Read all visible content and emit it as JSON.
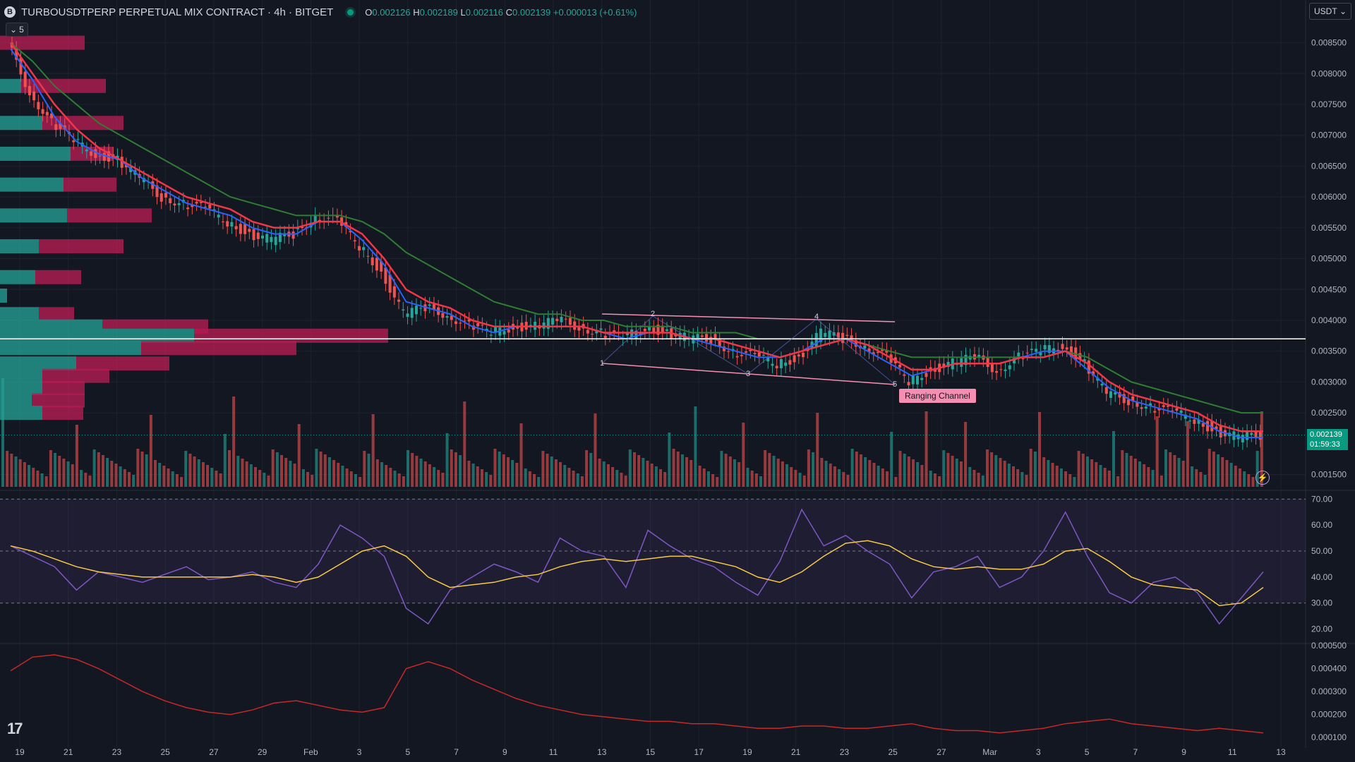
{
  "header": {
    "symbol": "TURBOUSDTPERP PERPETUAL MIX CONTRACT · 4h · BITGET",
    "logo_letter": "B",
    "ohlc": {
      "o_label": "O",
      "o": "0.002126",
      "h_label": "H",
      "h": "0.002189",
      "l_label": "L",
      "l": "0.002116",
      "c_label": "C",
      "c": "0.002139",
      "change": "+0.000013 (+0.61%)"
    },
    "collapse_count": "5"
  },
  "currency_selector": {
    "value": "USDT"
  },
  "last_price": {
    "price": "0.002139",
    "countdown": "01:59:33"
  },
  "annotation": {
    "label": "Ranging Channel",
    "points": [
      "2",
      "4",
      "1",
      "3",
      "5"
    ]
  },
  "colors": {
    "bg": "#131722",
    "up": "#26a69a",
    "down": "#ef5350",
    "ema_fast": "#2962ff",
    "ema_mid": "#f23645",
    "ema_slow": "#2e7d32",
    "rsi": "#7e57c2",
    "rsi_ma": "#f7c948",
    "third": "#c62828",
    "channel": "#f48fb1"
  },
  "icons": {
    "tradingview_logo": "tradingview-logo-icon",
    "lightning": "lightning-icon",
    "chevron": "chevron-down-icon"
  },
  "chart_data": [
    {
      "type": "line",
      "ylim": [
        0.0013,
        0.00885
      ],
      "price_ticks": [
        "0.008500",
        "0.008000",
        "0.007500",
        "0.007000",
        "0.006500",
        "0.006000",
        "0.005500",
        "0.005000",
        "0.004500",
        "0.004000",
        "0.003500",
        "0.003000",
        "0.002500",
        "0.001500"
      ],
      "price_tick_values": [
        0.0085,
        0.008,
        0.0075,
        0.007,
        0.0065,
        0.006,
        0.0055,
        0.005,
        0.0045,
        0.004,
        0.0035,
        0.003,
        0.0025,
        0.0015
      ],
      "x_ticks": [
        "19",
        "21",
        "23",
        "25",
        "27",
        "29",
        "Feb",
        "3",
        "5",
        "7",
        "9",
        "11",
        "13",
        "15",
        "17",
        "19",
        "21",
        "23",
        "25",
        "27",
        "Mar",
        "3",
        "5",
        "7",
        "9",
        "11",
        "13"
      ],
      "close": [
        0.0085,
        0.0077,
        0.0072,
        0.0069,
        0.0067,
        0.0066,
        0.0063,
        0.006,
        0.0059,
        0.0058,
        0.0056,
        0.0054,
        0.0053,
        0.0054,
        0.0057,
        0.0056,
        0.0052,
        0.0048,
        0.0041,
        0.0042,
        0.0041,
        0.0039,
        0.0038,
        0.0039,
        0.0039,
        0.004,
        0.0039,
        0.0038,
        0.0037,
        0.0039,
        0.0038,
        0.0037,
        0.0037,
        0.0035,
        0.0034,
        0.0033,
        0.0034,
        0.0038,
        0.0037,
        0.0036,
        0.0034,
        0.003,
        0.0032,
        0.0033,
        0.0034,
        0.0032,
        0.0034,
        0.0035,
        0.0036,
        0.0033,
        0.0028,
        0.0027,
        0.0026,
        0.0025,
        0.0024,
        0.0022,
        0.0021,
        0.00214
      ],
      "ema_fast": [
        0.0084,
        0.0079,
        0.0073,
        0.0069,
        0.0067,
        0.0066,
        0.0063,
        0.0061,
        0.0059,
        0.0058,
        0.0057,
        0.0055,
        0.0054,
        0.0054,
        0.0056,
        0.0056,
        0.0053,
        0.0049,
        0.0043,
        0.0042,
        0.0041,
        0.0039,
        0.0038,
        0.0039,
        0.0039,
        0.0039,
        0.0039,
        0.0038,
        0.0037,
        0.0038,
        0.0038,
        0.0037,
        0.0036,
        0.0035,
        0.0034,
        0.0034,
        0.0035,
        0.0037,
        0.0037,
        0.0035,
        0.0033,
        0.0031,
        0.0032,
        0.0033,
        0.0033,
        0.0033,
        0.0034,
        0.0035,
        0.0035,
        0.0032,
        0.0029,
        0.0027,
        0.0026,
        0.0025,
        0.0024,
        0.0022,
        0.0021,
        0.0021
      ],
      "ema_mid": [
        0.0085,
        0.008,
        0.0075,
        0.0071,
        0.0068,
        0.0066,
        0.0064,
        0.0062,
        0.006,
        0.0059,
        0.0058,
        0.0056,
        0.0055,
        0.0055,
        0.0056,
        0.0056,
        0.0054,
        0.005,
        0.0045,
        0.0043,
        0.0042,
        0.004,
        0.0039,
        0.0039,
        0.0039,
        0.0039,
        0.0039,
        0.0038,
        0.0038,
        0.0038,
        0.0038,
        0.0037,
        0.0037,
        0.0036,
        0.0035,
        0.0034,
        0.0035,
        0.0036,
        0.0037,
        0.0036,
        0.0034,
        0.0032,
        0.0032,
        0.0033,
        0.0033,
        0.0033,
        0.0034,
        0.0034,
        0.0035,
        0.0033,
        0.003,
        0.0028,
        0.0027,
        0.0026,
        0.0025,
        0.0023,
        0.0022,
        0.0022
      ],
      "ema_slow": [
        0.0085,
        0.0082,
        0.0078,
        0.0075,
        0.0072,
        0.007,
        0.0068,
        0.0066,
        0.0064,
        0.0062,
        0.006,
        0.0059,
        0.0058,
        0.0057,
        0.0057,
        0.0057,
        0.0056,
        0.0054,
        0.0051,
        0.0049,
        0.0047,
        0.0045,
        0.0043,
        0.0042,
        0.0041,
        0.0041,
        0.004,
        0.004,
        0.0039,
        0.0039,
        0.0039,
        0.0038,
        0.0038,
        0.0038,
        0.0037,
        0.0037,
        0.0037,
        0.0037,
        0.0037,
        0.0036,
        0.0035,
        0.0034,
        0.0034,
        0.0034,
        0.0034,
        0.0034,
        0.0034,
        0.0034,
        0.0035,
        0.0034,
        0.0032,
        0.003,
        0.0029,
        0.0028,
        0.0027,
        0.0026,
        0.0025,
        0.0025
      ],
      "horizontal_level": 0.0037
    },
    {
      "type": "line",
      "ylim": [
        15,
        72
      ],
      "ticks": [
        "70.00",
        "60.00",
        "50.00",
        "40.00",
        "30.00",
        "20.00"
      ],
      "tick_values": [
        70,
        60,
        50,
        40,
        30,
        20
      ],
      "band": [
        30,
        70
      ],
      "rsi": [
        52,
        48,
        44,
        35,
        42,
        40,
        38,
        41,
        44,
        39,
        40,
        42,
        38,
        36,
        45,
        60,
        55,
        48,
        28,
        22,
        35,
        40,
        45,
        42,
        38,
        55,
        50,
        48,
        36,
        58,
        52,
        47,
        44,
        38,
        33,
        46,
        66,
        52,
        56,
        50,
        45,
        32,
        42,
        44,
        48,
        36,
        40,
        50,
        65,
        48,
        34,
        30,
        38,
        40,
        34,
        22,
        32,
        42
      ],
      "rsi_ma": [
        52,
        50,
        47,
        44,
        42,
        41,
        40,
        40,
        40,
        40,
        40,
        41,
        40,
        38,
        40,
        45,
        50,
        52,
        48,
        40,
        36,
        37,
        38,
        40,
        41,
        44,
        46,
        47,
        46,
        47,
        48,
        48,
        46,
        44,
        40,
        38,
        42,
        48,
        53,
        54,
        52,
        47,
        44,
        43,
        44,
        43,
        43,
        45,
        50,
        51,
        46,
        40,
        37,
        36,
        35,
        29,
        30,
        36
      ]
    },
    {
      "type": "line",
      "ylim": [
        7e-05,
        0.0005
      ],
      "ticks": [
        "0.000500",
        "0.000400",
        "0.000300",
        "0.000200",
        "0.000100"
      ],
      "tick_values": [
        0.0005,
        0.0004,
        0.0003,
        0.0002,
        0.0001
      ],
      "values": [
        0.00039,
        0.00045,
        0.00046,
        0.00044,
        0.0004,
        0.00035,
        0.0003,
        0.00026,
        0.00023,
        0.00021,
        0.0002,
        0.00022,
        0.00025,
        0.00026,
        0.00024,
        0.00022,
        0.00021,
        0.00023,
        0.0004,
        0.00043,
        0.0004,
        0.00035,
        0.00031,
        0.00027,
        0.00024,
        0.00022,
        0.0002,
        0.00019,
        0.00018,
        0.00017,
        0.00017,
        0.00016,
        0.00016,
        0.00015,
        0.00014,
        0.00014,
        0.00015,
        0.00015,
        0.00014,
        0.00014,
        0.00015,
        0.00016,
        0.00014,
        0.00013,
        0.00013,
        0.00012,
        0.00013,
        0.00014,
        0.00016,
        0.00017,
        0.00018,
        0.00016,
        0.00015,
        0.00014,
        0.00013,
        0.00014,
        0.00013,
        0.00012
      ]
    }
  ]
}
